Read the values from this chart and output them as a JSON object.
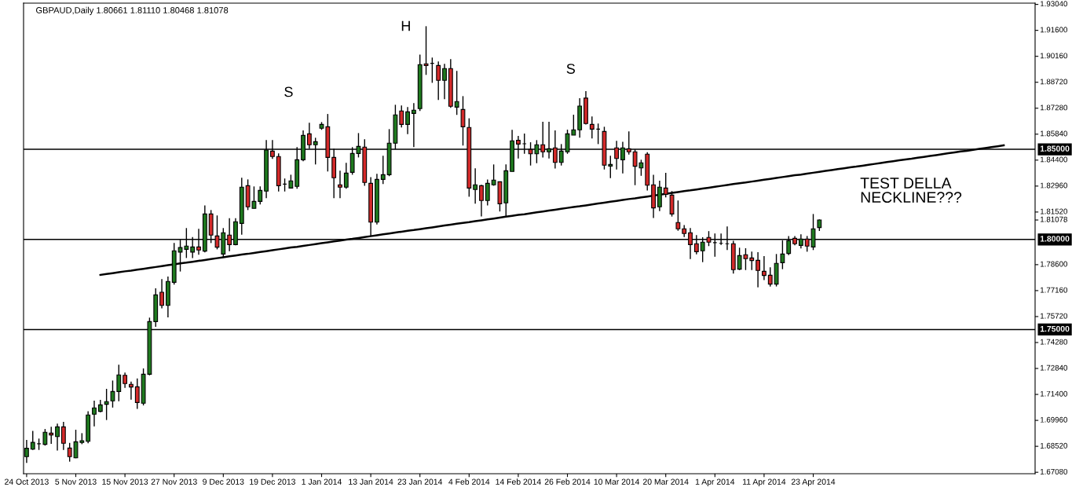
{
  "chart_data": {
    "type": "candlestick",
    "title": "GBPAUD,Daily 1.80661 1.81110 1.80468 1.81078",
    "categories": [
      "24 Oct 2013",
      null,
      null,
      null,
      null,
      null,
      null,
      null,
      "5 Nov 2013",
      null,
      null,
      null,
      null,
      null,
      null,
      null,
      "15 Nov 2013",
      null,
      null,
      null,
      null,
      null,
      null,
      null,
      "27 Nov 2013",
      null,
      null,
      null,
      null,
      null,
      null,
      null,
      "9 Dec 2013",
      null,
      null,
      null,
      null,
      null,
      null,
      null,
      "19 Dec 2013",
      null,
      null,
      null,
      null,
      null,
      null,
      null,
      "1 Jan 2014",
      null,
      null,
      null,
      null,
      null,
      null,
      null,
      "13 Jan 2014",
      null,
      null,
      null,
      null,
      null,
      null,
      null,
      "23 Jan 2014",
      null,
      null,
      null,
      null,
      null,
      null,
      null,
      "4 Feb 2014",
      null,
      null,
      null,
      null,
      null,
      null,
      null,
      "14 Feb 2014",
      null,
      null,
      null,
      null,
      null,
      null,
      null,
      "26 Feb 2014",
      null,
      null,
      null,
      null,
      null,
      null,
      null,
      "10 Mar 2014",
      null,
      null,
      null,
      null,
      null,
      null,
      null,
      "20 Mar 2014",
      null,
      null,
      null,
      null,
      null,
      null,
      null,
      "1 Apr 2014",
      null,
      null,
      null,
      null,
      null,
      null,
      null,
      "11 Apr 2014",
      null,
      null,
      null,
      null,
      null,
      null,
      null,
      "23 Apr 2014",
      null,
      null,
      null,
      null,
      null,
      null,
      null,
      null,
      null,
      null,
      null,
      null,
      null,
      null,
      null,
      null,
      null,
      null,
      null,
      null,
      null,
      null,
      null,
      null,
      null,
      null,
      null,
      null,
      null,
      null,
      null,
      null,
      null,
      null,
      null,
      null
    ],
    "ohlc": [
      [
        1.6795,
        1.6887,
        1.676,
        1.6841
      ],
      [
        1.6836,
        1.6938,
        1.6832,
        1.6874
      ],
      [
        1.6866,
        1.6895,
        1.6832,
        1.6866
      ],
      [
        1.6863,
        1.6948,
        1.6856,
        1.693
      ],
      [
        1.6925,
        1.696,
        1.6866,
        1.6915
      ],
      [
        1.6906,
        1.6978,
        1.6829,
        1.696
      ],
      [
        1.696,
        1.6988,
        1.6832,
        1.6869
      ],
      [
        1.6842,
        1.6871,
        1.6767,
        1.6795
      ],
      [
        1.6788,
        1.6944,
        1.6786,
        1.6877
      ],
      [
        1.6873,
        1.6925,
        1.6864,
        1.6883
      ],
      [
        1.688,
        1.7046,
        1.6869,
        1.7026
      ],
      [
        1.703,
        1.7105,
        1.6963,
        1.7065
      ],
      [
        1.7046,
        1.711,
        1.7041,
        1.7082
      ],
      [
        1.7085,
        1.7171,
        1.6998,
        1.71
      ],
      [
        1.7104,
        1.7217,
        1.7067,
        1.7156
      ],
      [
        1.7156,
        1.7305,
        1.7102,
        1.7248
      ],
      [
        1.7246,
        1.7261,
        1.7176,
        1.72
      ],
      [
        1.7196,
        1.7211,
        1.7111,
        1.7181
      ],
      [
        1.7182,
        1.7229,
        1.706,
        1.7095
      ],
      [
        1.7091,
        1.7284,
        1.7079,
        1.7252
      ],
      [
        1.7252,
        1.7566,
        1.7246,
        1.7544
      ],
      [
        1.7544,
        1.7729,
        1.7515,
        1.7692
      ],
      [
        1.7707,
        1.778,
        1.7618,
        1.7634
      ],
      [
        1.7634,
        1.7794,
        1.7567,
        1.7767
      ],
      [
        1.7762,
        1.798,
        1.7749,
        1.7937
      ],
      [
        1.793,
        1.7998,
        1.7822,
        1.7955
      ],
      [
        1.7945,
        1.8063,
        1.7897,
        1.7963
      ],
      [
        1.793,
        1.8013,
        1.7897,
        1.7958
      ],
      [
        1.7958,
        1.8059,
        1.7915,
        1.7941
      ],
      [
        1.7935,
        1.8189,
        1.7928,
        1.8141
      ],
      [
        1.8141,
        1.8163,
        1.798,
        1.8024
      ],
      [
        1.8019,
        1.8133,
        1.7945,
        1.7957
      ],
      [
        1.7919,
        1.8063,
        1.7902,
        1.8037
      ],
      [
        1.8024,
        1.8118,
        1.7935,
        1.7971
      ],
      [
        1.7971,
        1.8118,
        1.7967,
        1.8098
      ],
      [
        1.8089,
        1.8342,
        1.8026,
        1.829
      ],
      [
        1.8298,
        1.8333,
        1.8163,
        1.8181
      ],
      [
        1.8172,
        1.8294,
        1.8172,
        1.8211
      ],
      [
        1.8211,
        1.8294,
        1.8194,
        1.8272
      ],
      [
        1.8268,
        1.8551,
        1.8229,
        1.8496
      ],
      [
        1.849,
        1.8551,
        1.8447,
        1.846
      ],
      [
        1.846,
        1.8477,
        1.8266,
        1.8298
      ],
      [
        1.8307,
        1.8338,
        1.8266,
        1.8307
      ],
      [
        1.8285,
        1.8359,
        1.8285,
        1.8325
      ],
      [
        1.8294,
        1.8512,
        1.8281,
        1.8442
      ],
      [
        1.8442,
        1.8605,
        1.8434,
        1.8577
      ],
      [
        1.8586,
        1.8647,
        1.8503,
        1.8525
      ],
      [
        1.8525,
        1.8564,
        1.8416,
        1.8542
      ],
      [
        1.8617,
        1.8651,
        1.8608,
        1.8638
      ],
      [
        1.8625,
        1.8696,
        1.8377,
        1.8455
      ],
      [
        1.8455,
        1.8503,
        1.8229,
        1.8342
      ],
      [
        1.8303,
        1.8381,
        1.8229,
        1.829
      ],
      [
        1.829,
        1.8425,
        1.8281,
        1.8368
      ],
      [
        1.8372,
        1.8512,
        1.8359,
        1.8477
      ],
      [
        1.8477,
        1.859,
        1.8455,
        1.8516
      ],
      [
        1.8512,
        1.8556,
        1.8298,
        1.8316
      ],
      [
        1.8311,
        1.8346,
        1.8021,
        1.8096
      ],
      [
        1.8096,
        1.8364,
        1.8083,
        1.8333
      ],
      [
        1.8333,
        1.8464,
        1.8307,
        1.8359
      ],
      [
        1.8359,
        1.8612,
        1.8351,
        1.8534
      ],
      [
        1.8534,
        1.8747,
        1.85,
        1.8691
      ],
      [
        1.8713,
        1.8743,
        1.8621,
        1.8638
      ],
      [
        1.8638,
        1.8734,
        1.8584,
        1.8708
      ],
      [
        1.8699,
        1.8756,
        1.8512,
        1.8717
      ],
      [
        1.8726,
        1.9026,
        1.8713,
        1.897
      ],
      [
        1.8974,
        1.9183,
        1.8913,
        1.8965
      ],
      [
        1.8977,
        1.9009,
        1.8869,
        1.8977
      ],
      [
        1.8965,
        1.8987,
        1.8774,
        1.8883
      ],
      [
        1.8883,
        1.8974,
        1.8778,
        1.8948
      ],
      [
        1.8948,
        1.9,
        1.873,
        1.8739
      ],
      [
        1.8734,
        1.8935,
        1.8691,
        1.8765
      ],
      [
        1.8721,
        1.8795,
        1.8521,
        1.8625
      ],
      [
        1.8621,
        1.8672,
        1.8237,
        1.8285
      ],
      [
        1.8277,
        1.8394,
        1.8198,
        1.8303
      ],
      [
        1.8298,
        1.8303,
        1.8128,
        1.8216
      ],
      [
        1.8216,
        1.8332,
        1.8189,
        1.8311
      ],
      [
        1.8303,
        1.8416,
        1.8298,
        1.8329
      ],
      [
        1.832,
        1.832,
        1.8155,
        1.8198
      ],
      [
        1.8203,
        1.8416,
        1.8128,
        1.8381
      ],
      [
        1.8377,
        1.8608,
        1.8377,
        1.8547
      ],
      [
        1.855,
        1.8574,
        1.8449,
        1.8529
      ],
      [
        1.8531,
        1.8587,
        1.8475,
        1.8531
      ],
      [
        1.8499,
        1.8539,
        1.841,
        1.8475
      ],
      [
        1.8475,
        1.8551,
        1.8423,
        1.8525
      ],
      [
        1.8525,
        1.8653,
        1.8454,
        1.8486
      ],
      [
        1.8486,
        1.8653,
        1.8449,
        1.8503
      ],
      [
        1.8508,
        1.8605,
        1.8393,
        1.8427
      ],
      [
        1.8427,
        1.8529,
        1.841,
        1.849
      ],
      [
        1.8486,
        1.8609,
        1.8475,
        1.8586
      ],
      [
        1.8579,
        1.8692,
        1.8579,
        1.8608
      ],
      [
        1.8608,
        1.8784,
        1.8564,
        1.874
      ],
      [
        1.8784,
        1.8823,
        1.8638,
        1.8643
      ],
      [
        1.8638,
        1.8682,
        1.856,
        1.8612
      ],
      [
        1.8612,
        1.8643,
        1.8529,
        1.8612
      ],
      [
        1.8599,
        1.8625,
        1.8388,
        1.8412
      ],
      [
        1.8407,
        1.8464,
        1.834,
        1.8416
      ],
      [
        1.8508,
        1.8547,
        1.8388,
        1.8449
      ],
      [
        1.8442,
        1.8542,
        1.8366,
        1.8508
      ],
      [
        1.8503,
        1.8599,
        1.8471,
        1.8486
      ],
      [
        1.8486,
        1.8499,
        1.8301,
        1.8406
      ],
      [
        1.8397,
        1.8442,
        1.8353,
        1.8425
      ],
      [
        1.8473,
        1.8484,
        1.8271,
        1.8301
      ],
      [
        1.8303,
        1.8359,
        1.8119,
        1.8175
      ],
      [
        1.8181,
        1.8326,
        1.8157,
        1.829
      ],
      [
        1.8285,
        1.8369,
        1.8233,
        1.825
      ],
      [
        1.8246,
        1.8268,
        1.8127,
        1.8141
      ],
      [
        1.8094,
        1.8216,
        1.8048,
        1.8059
      ],
      [
        1.8059,
        1.808,
        1.8013,
        1.8033
      ],
      [
        1.8037,
        1.8063,
        1.7891,
        1.7971
      ],
      [
        1.7976,
        1.8024,
        1.7917,
        1.7932
      ],
      [
        1.7937,
        1.8012,
        1.7874,
        1.7985
      ],
      [
        1.8011,
        1.8046,
        1.7963,
        1.7985
      ],
      [
        1.7982,
        1.8033,
        1.7904,
        1.7982
      ],
      [
        1.7978,
        1.8033,
        1.797,
        1.7978
      ],
      [
        1.7976,
        1.8072,
        1.7941,
        1.7976
      ],
      [
        1.7976,
        1.7992,
        1.781,
        1.7832
      ],
      [
        1.7835,
        1.7954,
        1.783,
        1.791
      ],
      [
        1.7915,
        1.7951,
        1.783,
        1.7893
      ],
      [
        1.7897,
        1.7932,
        1.783,
        1.7883
      ],
      [
        1.7884,
        1.7929,
        1.7734,
        1.7828
      ],
      [
        1.7823,
        1.7907,
        1.7774,
        1.78
      ],
      [
        1.7801,
        1.7845,
        1.7739,
        1.7752
      ],
      [
        1.7752,
        1.7919,
        1.7739,
        1.7867
      ],
      [
        1.7871,
        1.7995,
        1.7835,
        1.7919
      ],
      [
        1.7922,
        1.8019,
        1.7913,
        1.7993
      ],
      [
        1.8006,
        1.8019,
        1.7967,
        1.7976
      ],
      [
        1.7967,
        1.8028,
        1.795,
        1.8002
      ],
      [
        1.8002,
        1.8019,
        1.7932,
        1.7963
      ],
      [
        1.7958,
        1.8141,
        1.7941,
        1.8059
      ],
      [
        1.80661,
        1.8111,
        1.80468,
        1.81078
      ],
      null,
      null,
      null,
      null,
      null,
      null,
      null,
      null,
      null,
      null,
      null,
      null,
      null,
      null,
      null,
      null,
      null,
      null,
      null,
      null,
      null,
      null,
      null,
      null,
      null,
      null,
      null,
      null,
      null,
      null,
      null,
      null,
      null,
      null,
      null
    ],
    "series": [
      {
        "type": "line",
        "color": "#000000",
        "values": [
          null,
          null,
          null,
          null,
          null,
          null,
          null,
          null,
          null,
          null,
          null,
          null,
          1.7803,
          1.7808,
          1.7813,
          1.7818,
          1.7823,
          1.7827,
          1.7832,
          1.7837,
          1.7842,
          1.7847,
          1.7852,
          1.7857,
          1.7862,
          1.7867,
          1.7871,
          1.7876,
          1.7881,
          1.7886,
          1.7891,
          1.7896,
          1.7901,
          1.7906,
          1.7911,
          1.7916,
          1.792,
          1.7925,
          1.793,
          1.7935,
          1.794,
          1.7945,
          1.795,
          1.7955,
          1.7959,
          1.7964,
          1.7969,
          1.7974,
          1.7979,
          1.7984,
          1.7989,
          1.7994,
          1.7999,
          1.8003,
          1.8008,
          1.8013,
          1.8018,
          1.8023,
          1.8028,
          1.8033,
          1.8038,
          1.8043,
          1.8048,
          1.8052,
          1.8057,
          1.8062,
          1.8067,
          1.8072,
          1.8077,
          1.8082,
          1.8087,
          1.8092,
          1.8096,
          1.8101,
          1.8106,
          1.8111,
          1.8116,
          1.8121,
          1.8126,
          1.8131,
          1.8136,
          1.814,
          1.8145,
          1.815,
          1.8155,
          1.816,
          1.8165,
          1.817,
          1.8175,
          1.818,
          1.8184,
          1.8189,
          1.8194,
          1.8199,
          1.8204,
          1.8209,
          1.8214,
          1.8219,
          1.8224,
          1.8228,
          1.8233,
          1.8238,
          1.8243,
          1.8248,
          1.8253,
          1.8258,
          1.8263,
          1.8268,
          1.8272,
          1.8277,
          1.8282,
          1.8287,
          1.8292,
          1.8297,
          1.8302,
          1.8307,
          1.8312,
          1.8316,
          1.8321,
          1.8326,
          1.8331,
          1.8336,
          1.8341,
          1.8346,
          1.8351,
          1.8356,
          1.836,
          1.8365,
          1.837,
          1.8375,
          1.838,
          1.8385,
          1.839,
          1.8395,
          1.84,
          1.8404,
          1.8409,
          1.8414,
          1.8419,
          1.8424,
          1.8429,
          1.8434,
          1.8439,
          1.8444,
          1.8448,
          1.8453,
          1.8458,
          1.8463,
          1.8468,
          1.8473,
          1.8478,
          1.8483,
          1.8488,
          1.8492,
          1.8497,
          1.8502,
          1.8507,
          1.8512,
          1.8517,
          1.8522,
          null,
          null,
          null,
          null,
          null
        ]
      }
    ],
    "ylim": [
      1.67,
      1.9311
    ],
    "yticks": [
      {
        "value": 1.6708,
        "label": "1.67080"
      },
      {
        "value": 1.6852,
        "label": "1.68520"
      },
      {
        "value": 1.6996,
        "label": "1.69960"
      },
      {
        "value": 1.714,
        "label": "1.71400"
      },
      {
        "value": 1.7284,
        "label": "1.72840"
      },
      {
        "value": 1.7428,
        "label": "1.74280"
      },
      {
        "value": 1.7572,
        "label": "1.75720"
      },
      {
        "value": 1.7716,
        "label": "1.77160"
      },
      {
        "value": 1.786,
        "label": "1.78600"
      },
      {
        "value": 1.81078,
        "label": "1.81078"
      },
      {
        "value": 1.8152,
        "label": "1.81520"
      },
      {
        "value": 1.8296,
        "label": "1.82960"
      },
      {
        "value": 1.844,
        "label": "1.84400"
      },
      {
        "value": 1.8584,
        "label": "1.85840"
      },
      {
        "value": 1.8728,
        "label": "1.87280"
      },
      {
        "value": 1.8872,
        "label": "1.88720"
      },
      {
        "value": 1.9016,
        "label": "1.90160"
      },
      {
        "value": 1.916,
        "label": "1.91600"
      },
      {
        "value": 1.9304,
        "label": "1.93040"
      }
    ],
    "ref_lines": [
      {
        "axis": "y",
        "value": 1.85,
        "label": "1.85000",
        "color": "#000000"
      },
      {
        "axis": "y",
        "value": 1.8,
        "label": "1.80000",
        "color": "#000000"
      },
      {
        "axis": "y",
        "value": 1.75,
        "label": "1.75000",
        "color": "#000000"
      }
    ],
    "annotations": [
      "S",
      "H",
      "S",
      "TEST DELLA\nNECKLINE???"
    ],
    "grid": false
  }
}
